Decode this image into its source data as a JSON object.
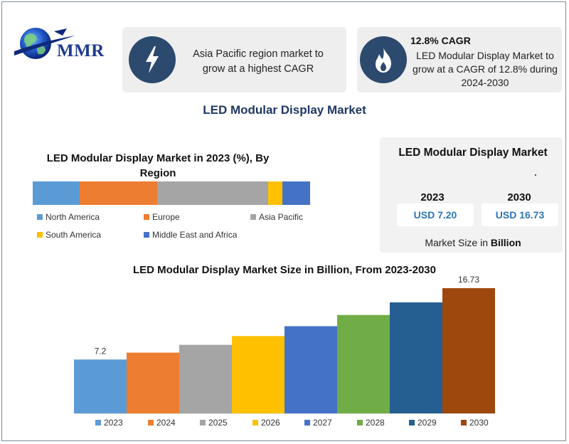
{
  "brand": {
    "logo_text": "MMR"
  },
  "info_cards": {
    "region": {
      "icon": "lightning-bolt-icon",
      "text": "Asia Pacific region market to grow at a highest CAGR"
    },
    "cagr": {
      "icon": "flame-icon",
      "title": "12.8% CAGR",
      "text": "LED Modular Display Market to grow at a CAGR of 12.8% during 2024-2030"
    }
  },
  "main_title": "LED Modular  Display Market",
  "region_chart": {
    "title": "LED Modular Display Market in 2023 (%), By Region",
    "legend": [
      {
        "name": "North America",
        "color": "#5b9bd5"
      },
      {
        "name": "Europe",
        "color": "#ed7d31"
      },
      {
        "name": "Asia Pacific",
        "color": "#a5a5a5"
      },
      {
        "name": "South America",
        "color": "#ffc000"
      },
      {
        "name": "Middle East and Africa",
        "color": "#4472c4"
      }
    ]
  },
  "summary": {
    "title": "LED Modular Display Market",
    "year1": "2023",
    "value1": "USD 7.20",
    "year2": "2030",
    "value2": "USD 16.73",
    "footer_prefix": "Market Size in ",
    "footer_bold": "Billion"
  },
  "chart_data": [
    {
      "type": "bar",
      "stacked": true,
      "title": "LED Modular Display Market in 2023 (%), By Region",
      "categories": [
        "2023"
      ],
      "series": [
        {
          "name": "North America",
          "values": [
            17
          ],
          "color": "#5b9bd5"
        },
        {
          "name": "Europe",
          "values": [
            28
          ],
          "color": "#ed7d31"
        },
        {
          "name": "Asia Pacific",
          "values": [
            40
          ],
          "color": "#a5a5a5"
        },
        {
          "name": "South America",
          "values": [
            5
          ],
          "color": "#ffc000"
        },
        {
          "name": "Middle East and Africa",
          "values": [
            10
          ],
          "color": "#4472c4"
        }
      ],
      "legend_position": "bottom"
    },
    {
      "type": "bar",
      "title": "LED Modular Display Market Size in Billion, From 2023-2030",
      "categories": [
        "2023",
        "2024",
        "2025",
        "2026",
        "2027",
        "2028",
        "2029",
        "2030"
      ],
      "values": [
        7.2,
        8.12,
        9.16,
        10.33,
        11.65,
        13.15,
        14.83,
        16.73
      ],
      "data_labels": [
        "7.2",
        "",
        "",
        "",
        "",
        "",
        "",
        "16.73"
      ],
      "colors": [
        "#5b9bd5",
        "#ed7d31",
        "#a5a5a5",
        "#ffc000",
        "#4472c4",
        "#70ad47",
        "#255e91",
        "#9e480e"
      ],
      "ylim": [
        0,
        16.73
      ],
      "grid": false,
      "legend_position": "bottom"
    }
  ]
}
